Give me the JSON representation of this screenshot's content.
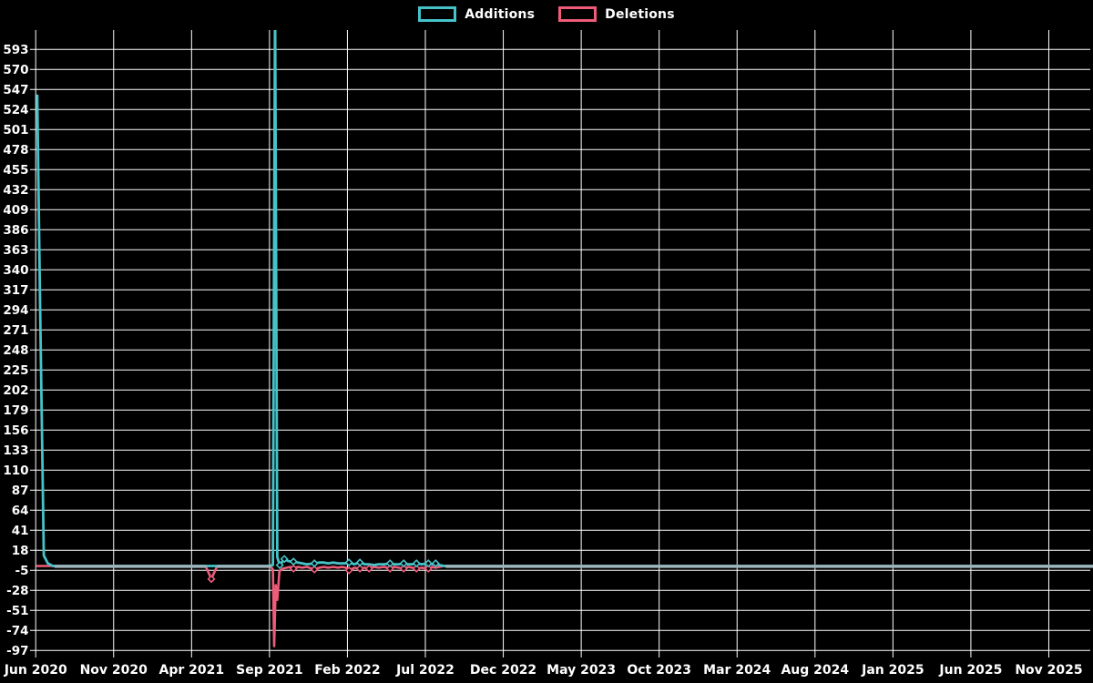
{
  "page": {
    "background": "#000000",
    "grid_color": "#ffffff",
    "text_color": "#ffffff"
  },
  "legend": {
    "position": "top-center",
    "items": [
      {
        "label": "Additions",
        "color": "#46c3c8"
      },
      {
        "label": "Deletions",
        "color": "#ee5c79"
      }
    ]
  },
  "chart_data": {
    "type": "line",
    "title": "",
    "xlabel": "",
    "ylabel": "",
    "legend_position": "top-center",
    "grid": true,
    "background": "#000000",
    "grid_color": "#ffffff",
    "overlap_flat_color": "#9fb4bb",
    "x_axis": {
      "unit": "months since Jun 2020",
      "tick_months": [
        0,
        5,
        10,
        15,
        20,
        25,
        30,
        35,
        40,
        45,
        50,
        55,
        60,
        65
      ],
      "tick_labels": [
        "Jun 2020",
        "Nov 2020",
        "Apr 2021",
        "Sep 2021",
        "Feb 2022",
        "Jul 2022",
        "Dec 2022",
        "May 2023",
        "Oct 2023",
        "Mar 2024",
        "Aug 2024",
        "Jan 2025",
        "Jun 2025",
        "Nov 2025"
      ],
      "range_months": [
        0,
        67.9
      ]
    },
    "y_axis": {
      "min": -97,
      "max": 593,
      "step": 23,
      "tick_labels": [
        593,
        570,
        547,
        524,
        501,
        478,
        455,
        432,
        409,
        386,
        363,
        340,
        317,
        294,
        271,
        248,
        225,
        202,
        179,
        156,
        133,
        110,
        87,
        64,
        41,
        18,
        -5,
        -28,
        -51,
        -74,
        -97
      ]
    },
    "series": [
      {
        "name": "Additions",
        "color": "#46c3c8",
        "points": [
          [
            0.1,
            540
          ],
          [
            0.28,
            300
          ],
          [
            0.52,
            12
          ],
          [
            0.78,
            3
          ],
          [
            1.1,
            0
          ],
          [
            14.9,
            0
          ],
          [
            15.22,
            1
          ],
          [
            15.36,
            650
          ],
          [
            15.5,
            10
          ],
          [
            15.66,
            1
          ],
          [
            15.95,
            8
          ],
          [
            16.15,
            6
          ],
          [
            16.35,
            5
          ],
          [
            16.54,
            5
          ],
          [
            16.83,
            4
          ],
          [
            17.1,
            3
          ],
          [
            17.4,
            2
          ],
          [
            17.88,
            3
          ],
          [
            18.2,
            4
          ],
          [
            18.5,
            4
          ],
          [
            18.76,
            3
          ],
          [
            19.1,
            4
          ],
          [
            19.4,
            3
          ],
          [
            19.64,
            3
          ],
          [
            19.9,
            3
          ],
          [
            20.1,
            4
          ],
          [
            20.45,
            2
          ],
          [
            20.8,
            4
          ],
          [
            21.1,
            2
          ],
          [
            21.39,
            2
          ],
          [
            21.7,
            1
          ],
          [
            22.0,
            2
          ],
          [
            22.35,
            2
          ],
          [
            22.73,
            3
          ],
          [
            23.0,
            2
          ],
          [
            23.3,
            2
          ],
          [
            23.61,
            3
          ],
          [
            23.9,
            2
          ],
          [
            24.15,
            2
          ],
          [
            24.43,
            3
          ],
          [
            24.75,
            2
          ],
          [
            25.19,
            3
          ],
          [
            25.45,
            2
          ],
          [
            25.66,
            3
          ],
          [
            25.9,
            1
          ],
          [
            26.2,
            0
          ],
          [
            67.85,
            0
          ]
        ]
      },
      {
        "name": "Deletions",
        "color": "#ee5c79",
        "points": [
          [
            0.1,
            0
          ],
          [
            10.9,
            0
          ],
          [
            11.27,
            -15
          ],
          [
            11.64,
            0
          ],
          [
            15.05,
            0
          ],
          [
            15.22,
            -4
          ],
          [
            15.3,
            -92
          ],
          [
            15.4,
            -22
          ],
          [
            15.5,
            -39
          ],
          [
            15.64,
            -6
          ],
          [
            15.85,
            -3
          ],
          [
            16.1,
            -2
          ],
          [
            16.35,
            -1
          ],
          [
            16.54,
            -3
          ],
          [
            16.83,
            -1
          ],
          [
            17.1,
            -2
          ],
          [
            17.4,
            -1
          ],
          [
            17.88,
            -4
          ],
          [
            18.2,
            -2
          ],
          [
            18.5,
            -1
          ],
          [
            18.76,
            -2
          ],
          [
            19.1,
            -1
          ],
          [
            19.4,
            -2
          ],
          [
            19.64,
            -1
          ],
          [
            19.9,
            -2
          ],
          [
            20.1,
            -5
          ],
          [
            20.45,
            -2
          ],
          [
            20.8,
            -3
          ],
          [
            21.1,
            -2
          ],
          [
            21.39,
            -3
          ],
          [
            21.7,
            -1
          ],
          [
            22.0,
            -2
          ],
          [
            22.35,
            -1
          ],
          [
            22.73,
            -3
          ],
          [
            23.0,
            -1
          ],
          [
            23.3,
            -2
          ],
          [
            23.61,
            -3
          ],
          [
            23.9,
            -1
          ],
          [
            24.15,
            -2
          ],
          [
            24.43,
            -3
          ],
          [
            24.75,
            -2
          ],
          [
            25.19,
            -3
          ],
          [
            25.45,
            -1
          ],
          [
            25.66,
            -2
          ],
          [
            25.9,
            -1
          ],
          [
            26.2,
            0
          ],
          [
            67.85,
            0
          ]
        ]
      }
    ],
    "markers": {
      "additions": [
        [
          15.66,
          1
        ],
        [
          15.95,
          8
        ],
        [
          16.54,
          5
        ],
        [
          17.88,
          3
        ],
        [
          20.1,
          4
        ],
        [
          20.8,
          4
        ],
        [
          22.73,
          3
        ],
        [
          23.61,
          3
        ],
        [
          24.43,
          3
        ],
        [
          25.19,
          3
        ],
        [
          25.66,
          3
        ]
      ],
      "deletions": [
        [
          11.27,
          -15
        ],
        [
          16.54,
          -3
        ],
        [
          17.88,
          -4
        ],
        [
          20.1,
          -5
        ],
        [
          20.8,
          -3
        ],
        [
          21.39,
          -3
        ],
        [
          22.73,
          -3
        ],
        [
          23.61,
          -3
        ],
        [
          24.43,
          -3
        ],
        [
          25.19,
          -3
        ]
      ]
    },
    "flat_zero_segments": [
      [
        1.2,
        10.95
      ],
      [
        11.62,
        15.08
      ],
      [
        26.3,
        67.88
      ]
    ],
    "notes": "Weekly additions/deletions code-frequency chart. Jun 2020 spike ~540 additions; Sep 2021 additions spike clipped at plot top (>615, stored as 650); Sep 2021 deletions dip to ~-92 with secondary dip ~-39; May 2021 deletions dip ~-15; minor activity (|v|<=8) through Aug 2022; flat at 0 afterwards."
  }
}
